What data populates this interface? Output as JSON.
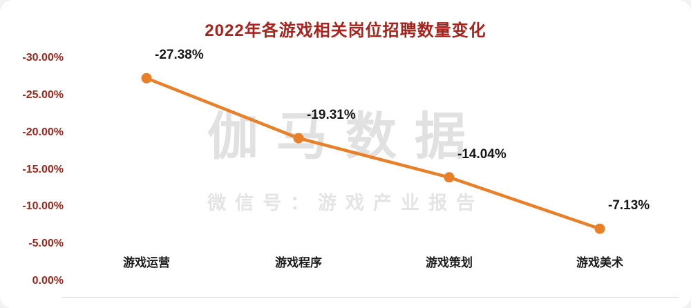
{
  "page": {
    "title": "2022年各游戏相关岗位招聘数量变化"
  },
  "watermark": {
    "line1": "伽马数据",
    "line2": "微信号：游戏产业报告"
  },
  "chart_data": {
    "type": "line",
    "title": "2022年各游戏相关岗位招聘数量变化",
    "categories": [
      "游戏运营",
      "游戏程序",
      "游戏策划",
      "游戏美术"
    ],
    "values": [
      -27.38,
      -19.31,
      -14.04,
      -7.13
    ],
    "point_labels": [
      "-27.38%",
      "-19.31%",
      "-14.04%",
      "-7.13%"
    ],
    "y_ticks": [
      "-30.00%",
      "-25.00%",
      "-20.00%",
      "-15.00%",
      "-10.00%",
      "-5.00%",
      "0.00%"
    ],
    "ylim": [
      -30,
      0
    ],
    "y_axis_inverted": true,
    "xlabel": "",
    "ylabel": "",
    "grid": false,
    "legend": null,
    "line_color": "#e8802a",
    "marker": "circle",
    "title_color": "#a8231d",
    "axis_label_color": "#9c261d"
  }
}
